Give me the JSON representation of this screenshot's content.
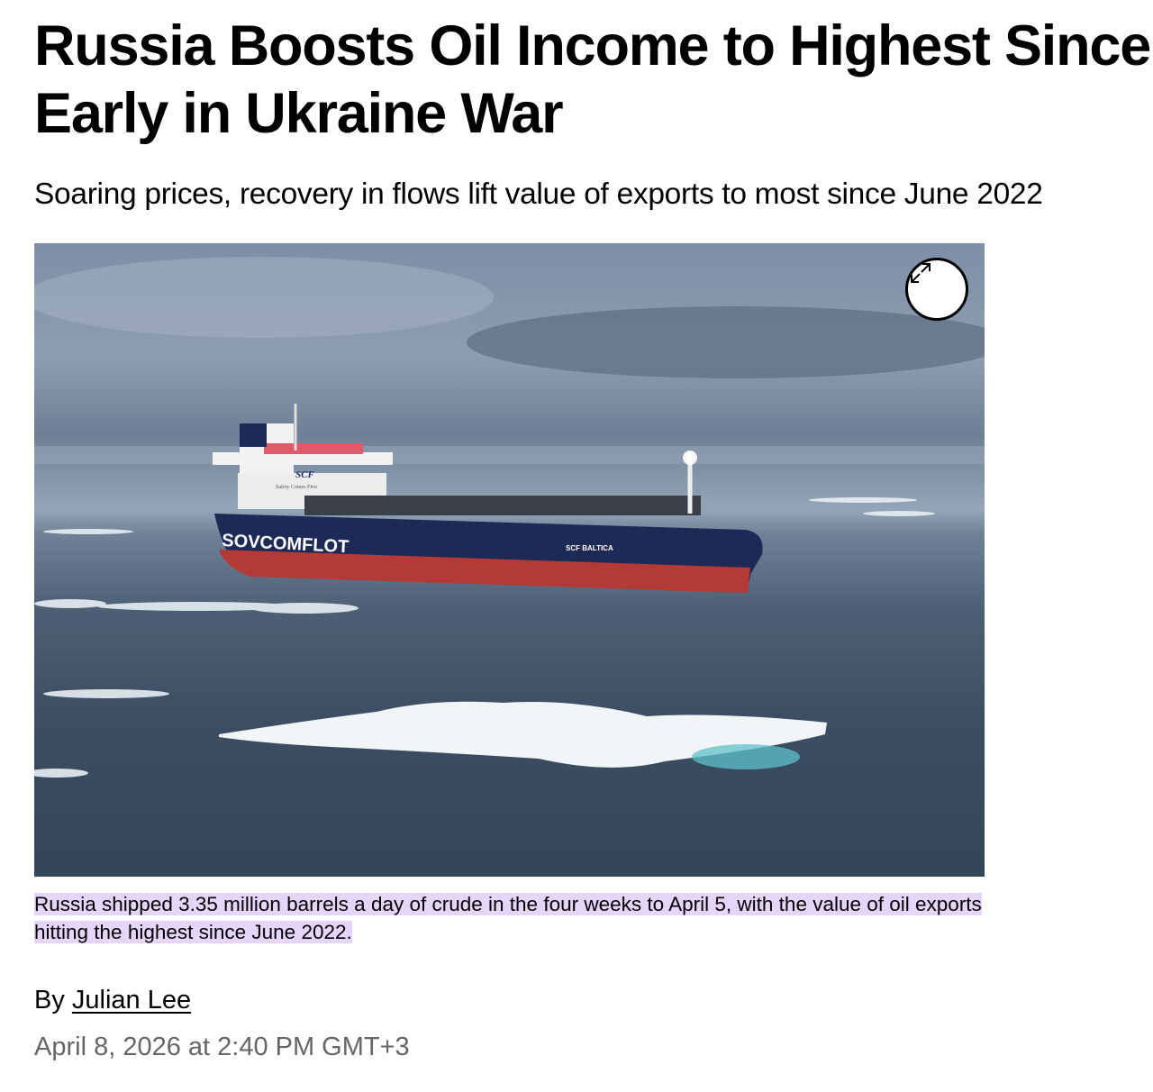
{
  "article": {
    "headline": "Russia Boosts Oil Income to Highest Since Early in Ukraine War",
    "subheadline": "Soaring prices, recovery in flows lift value of exports to most since June 2022",
    "image": {
      "alt_ship_name": "SCF BALTICA",
      "hull_logo": "SOVCOMFLOT",
      "superstructure_logo": "SCF",
      "superstructure_slogan": "Safety Comes First",
      "expand_icon": "expand-arrows-icon"
    },
    "caption": "Russia shipped 3.35 million barrels a day of crude in the four weeks to April 5, with the value of oil exports hitting the highest since June 2022.",
    "byline_prefix": "By",
    "author": "Julian Lee",
    "published": "April 8, 2026 at 2:40 PM GMT+3",
    "colors": {
      "caption_highlight": "#e6d5fb",
      "date_text": "#666666"
    }
  }
}
